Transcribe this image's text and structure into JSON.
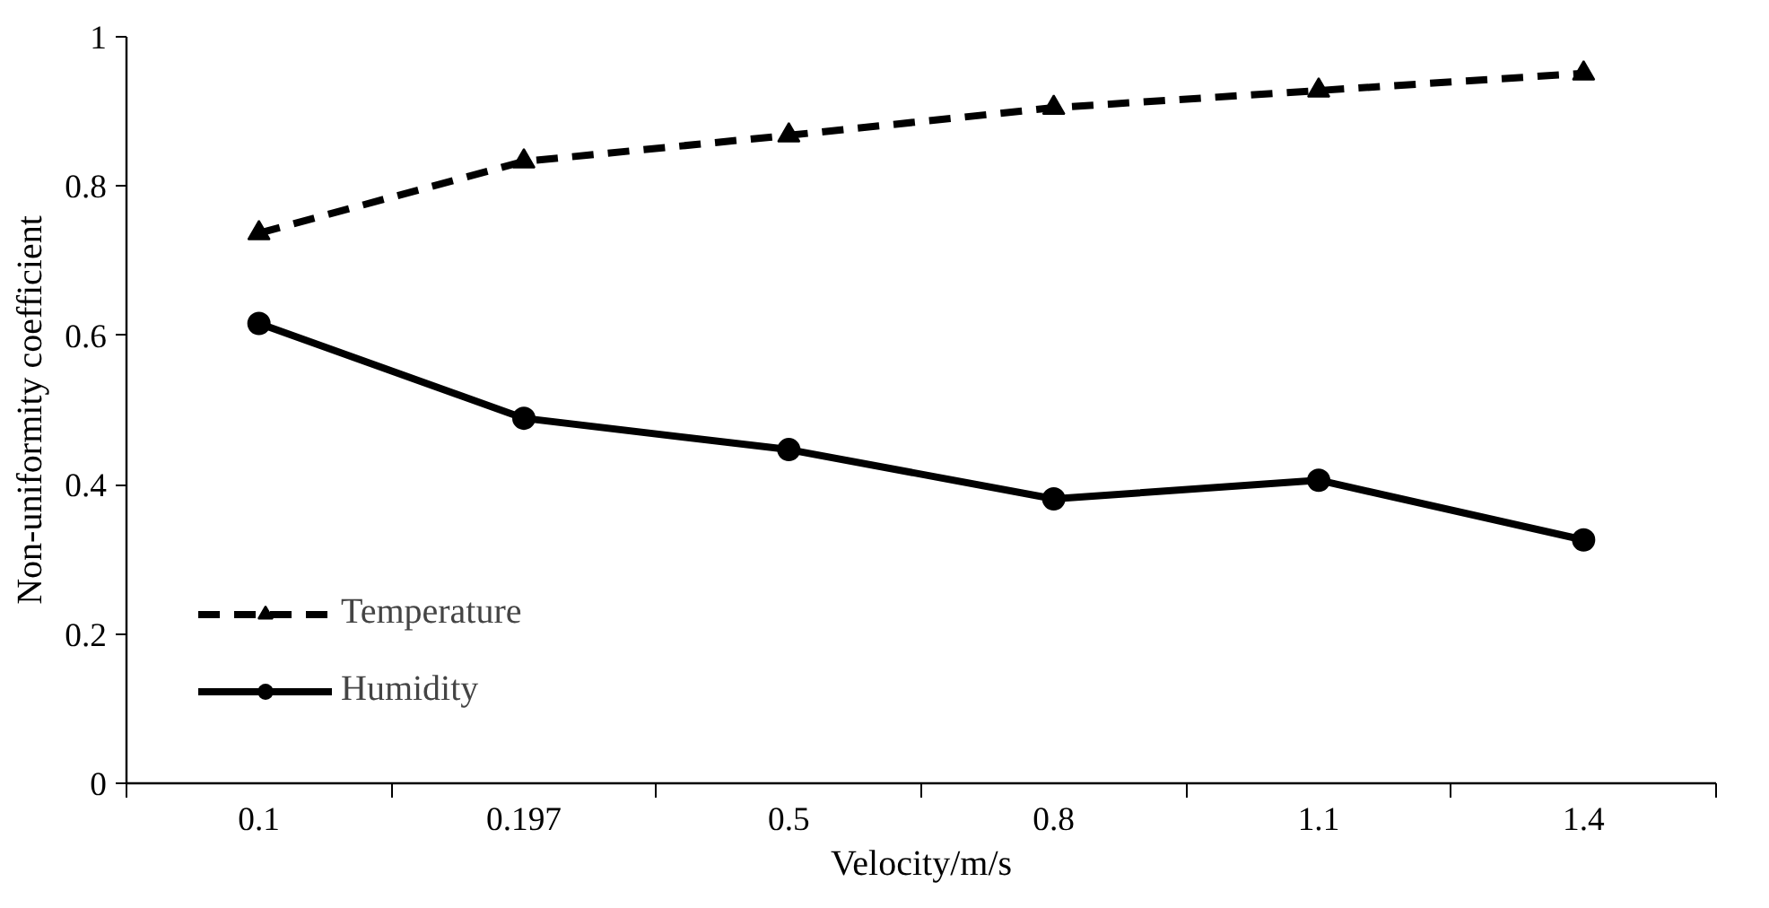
{
  "chart_data": {
    "type": "line",
    "xlabel": "Velocity/m/s",
    "ylabel": "Non-uniformity coefficient",
    "categories": [
      "0.1",
      "0.197",
      "0.5",
      "0.8",
      "1.1",
      "1.4"
    ],
    "series": [
      {
        "name": "Temperature",
        "color": "#000000",
        "marker": "triangle",
        "line_style": "dashed",
        "values": [
          0.737,
          0.833,
          0.868,
          0.905,
          0.928,
          0.951
        ]
      },
      {
        "name": "Humidity",
        "color": "#000000",
        "marker": "circle",
        "line_style": "solid",
        "values": [
          0.616,
          0.489,
          0.447,
          0.381,
          0.406,
          0.326
        ]
      }
    ],
    "ylim": [
      0,
      1
    ],
    "yticks": [
      0,
      0.2,
      0.4,
      0.6,
      0.8,
      1
    ],
    "grid": false,
    "legend": "bottom left"
  }
}
